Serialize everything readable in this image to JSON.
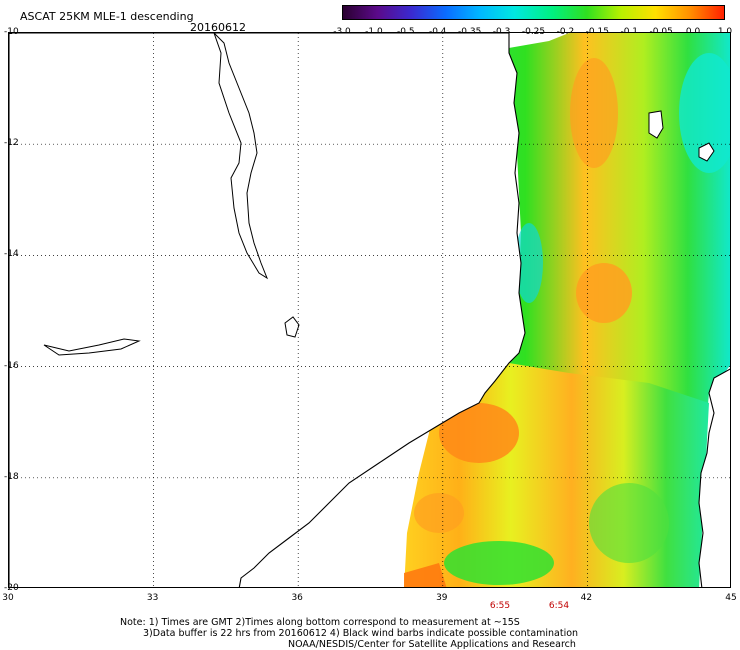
{
  "title": "ASCAT 25KM MLE-1 descending",
  "date": "20160612",
  "colorbar": {
    "labels": [
      "-3.0",
      "-1.0",
      "-0.5",
      "-0.4",
      "-0.35",
      "-0.3",
      "-0.25",
      "-0.2",
      "-0.15",
      "-0.1",
      "-0.05",
      "0.0",
      "1.0"
    ]
  },
  "map": {
    "lat_labels": [
      "-10",
      "-12",
      "-14",
      "-16",
      "-18",
      "-20"
    ],
    "lon_labels": [
      "30",
      "33",
      "36",
      "39",
      "42",
      "45"
    ],
    "times": [
      "6:55",
      "6:54"
    ],
    "colors": {
      "ocean_swath_green": "#30e020",
      "yellow": "#ffe000",
      "orange": "#ff9000",
      "cyan": "#00e8e0",
      "land": "#ffffff",
      "coast": "#000000"
    }
  },
  "notes": {
    "line1": "Note: 1) Times are GMT 2)Times along bottom correspond to measurement at ~15S",
    "line2": "3)Data buffer is 22 hrs from 20160612 4) Black wind barbs indicate possible contamination",
    "line3": "NOAA/NESDIS/Center for Satellite Applications and Research"
  }
}
